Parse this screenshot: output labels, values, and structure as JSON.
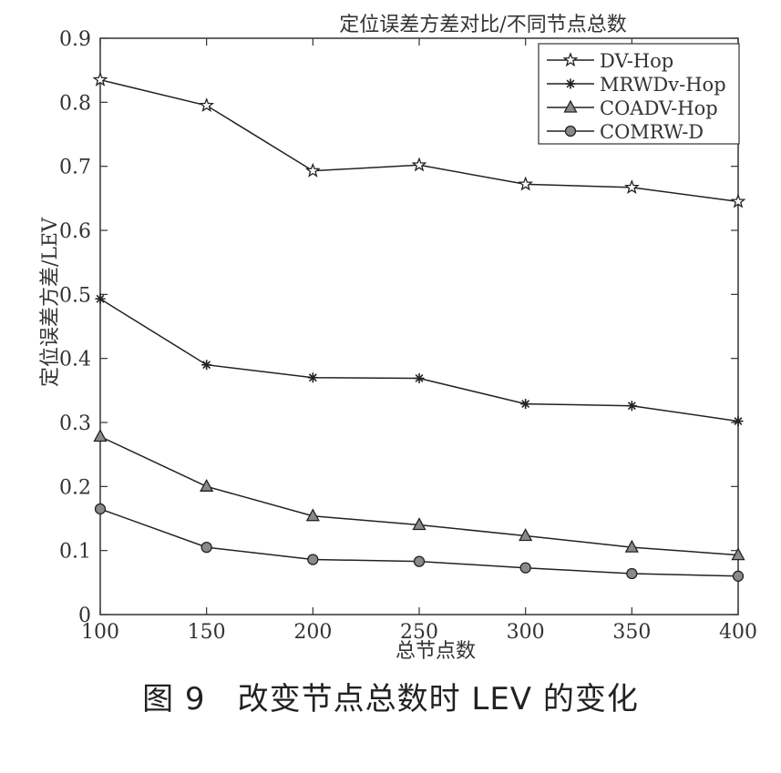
{
  "chart_data": {
    "type": "line",
    "title": "定位误差方差对比/不同节点总数",
    "xlabel": "总节点数",
    "ylabel": "定位误差方差/LEV",
    "x": [
      100,
      150,
      200,
      250,
      300,
      350,
      400
    ],
    "xlim": [
      100,
      400
    ],
    "ylim": [
      0,
      0.9
    ],
    "xticks": [
      "100",
      "150",
      "200",
      "250",
      "300",
      "350",
      "400"
    ],
    "yticks": [
      "0",
      "0.1",
      "0.2",
      "0.3",
      "0.4",
      "0.5",
      "0.6",
      "0.7",
      "0.8",
      "0.9"
    ],
    "grid": false,
    "legend_position": "top-right",
    "series": [
      {
        "name": "DV-Hop",
        "marker": "star",
        "values": [
          0.835,
          0.795,
          0.693,
          0.702,
          0.672,
          0.667,
          0.645
        ]
      },
      {
        "name": "MRWDv-Hop",
        "marker": "asterisk",
        "values": [
          0.493,
          0.39,
          0.37,
          0.369,
          0.329,
          0.326,
          0.302
        ]
      },
      {
        "name": "COADV-Hop",
        "marker": "triangle",
        "values": [
          0.278,
          0.2,
          0.154,
          0.14,
          0.123,
          0.105,
          0.093
        ]
      },
      {
        "name": "COMRW-D",
        "marker": "circle",
        "values": [
          0.165,
          0.105,
          0.086,
          0.083,
          0.073,
          0.064,
          0.06
        ]
      }
    ]
  },
  "caption": "图 9　改变节点总数时 LEV 的变化"
}
